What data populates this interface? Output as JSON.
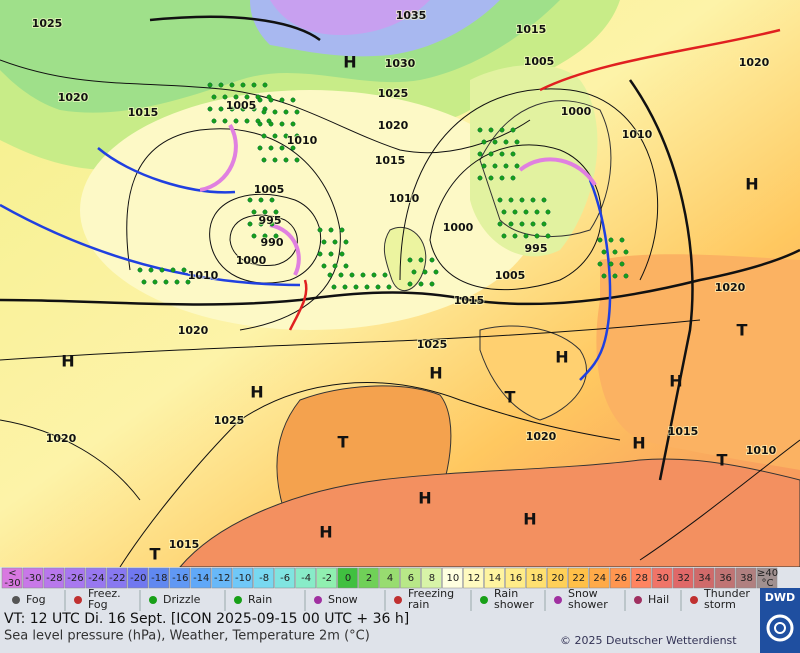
{
  "map": {
    "isobar_labels": [
      "1025",
      "1035",
      "1015",
      "1030",
      "1005",
      "1020",
      "1020",
      "1015",
      "1005",
      "1025",
      "1020",
      "1000",
      "1010",
      "1015",
      "1010",
      "1005",
      "1010",
      "995",
      "990",
      "1000",
      "995",
      "1000",
      "1005",
      "1010",
      "1015",
      "1020",
      "1020",
      "1025",
      "1025",
      "1020",
      "1015",
      "1010",
      "1020",
      "1015"
    ],
    "centers": [
      "H",
      "H",
      "H",
      "H",
      "H",
      "H",
      "H",
      "H",
      "H",
      "H",
      "H",
      "T",
      "T",
      "T",
      "T",
      "T"
    ]
  },
  "legend": {
    "scale": [
      {
        "label": [
          "<",
          "-30"
        ],
        "color": "#d878e0"
      },
      {
        "label": [
          "-30"
        ],
        "color": "#c878e8"
      },
      {
        "label": [
          "-28"
        ],
        "color": "#b878ec"
      },
      {
        "label": [
          "-26"
        ],
        "color": "#a878f0"
      },
      {
        "label": [
          "-24"
        ],
        "color": "#9878f0"
      },
      {
        "label": [
          "-22"
        ],
        "color": "#8878f0"
      },
      {
        "label": [
          "-20"
        ],
        "color": "#7078f0"
      },
      {
        "label": [
          "-18"
        ],
        "color": "#6088f0"
      },
      {
        "label": [
          "-16"
        ],
        "color": "#6098f4"
      },
      {
        "label": [
          "-14"
        ],
        "color": "#60a8f8"
      },
      {
        "label": [
          "-12"
        ],
        "color": "#68b8f8"
      },
      {
        "label": [
          "-10"
        ],
        "color": "#70c8f8"
      },
      {
        "label": [
          "-8"
        ],
        "color": "#78d8f0"
      },
      {
        "label": [
          "-6"
        ],
        "color": "#80e4e0"
      },
      {
        "label": [
          "-4"
        ],
        "color": "#88ecc8"
      },
      {
        "label": [
          "-2"
        ],
        "color": "#90f0b0"
      },
      {
        "label": [
          "0"
        ],
        "color": "#40c040"
      },
      {
        "label": [
          "2"
        ],
        "color": "#70d058"
      },
      {
        "label": [
          "4"
        ],
        "color": "#98dc70"
      },
      {
        "label": [
          "6"
        ],
        "color": "#b8e888"
      },
      {
        "label": [
          "8"
        ],
        "color": "#d8f4a8"
      },
      {
        "label": [
          "10"
        ],
        "color": "#ffffe0"
      },
      {
        "label": [
          "12"
        ],
        "color": "#fffac0"
      },
      {
        "label": [
          "14"
        ],
        "color": "#fff4a0"
      },
      {
        "label": [
          "16"
        ],
        "color": "#ffec88"
      },
      {
        "label": [
          "18"
        ],
        "color": "#ffe070"
      },
      {
        "label": [
          "20"
        ],
        "color": "#ffd058"
      },
      {
        "label": [
          "22"
        ],
        "color": "#ffc048"
      },
      {
        "label": [
          "24"
        ],
        "color": "#ffaa48"
      },
      {
        "label": [
          "26"
        ],
        "color": "#ff9650"
      },
      {
        "label": [
          "28"
        ],
        "color": "#ff8460"
      },
      {
        "label": [
          "30"
        ],
        "color": "#f07468"
      },
      {
        "label": [
          "32"
        ],
        "color": "#e06868"
      },
      {
        "label": [
          "34"
        ],
        "color": "#d06a6a"
      },
      {
        "label": [
          "36"
        ],
        "color": "#c07474"
      },
      {
        "label": [
          "38"
        ],
        "color": "#b08080"
      },
      {
        "label": [
          "≥40",
          "°C"
        ],
        "color": "#a09090"
      }
    ],
    "items": [
      {
        "label": [
          "Fog"
        ]
      },
      {
        "label": [
          "Freez.",
          "Fog"
        ]
      },
      {
        "label": [
          "Drizzle"
        ]
      },
      {
        "label": [
          "Rain"
        ]
      },
      {
        "label": [
          "Snow"
        ]
      },
      {
        "label": [
          "Freezing",
          "rain"
        ]
      },
      {
        "label": [
          "Rain",
          "shower"
        ]
      },
      {
        "label": [
          "Snow",
          "shower"
        ]
      },
      {
        "label": [
          "Hail"
        ]
      },
      {
        "label": [
          "Thunder",
          "storm"
        ]
      }
    ]
  },
  "footer": {
    "valid_time": "VT: 12 UTC Di.  16 Sept. [ICON 2025-09-15  00 UTC + 36 h]",
    "description": "Sea level pressure (hPa), Weather, Temperature 2m (°C)",
    "copyright": "© 2025 Deutscher Wetterdienst",
    "logo": "DWD"
  }
}
